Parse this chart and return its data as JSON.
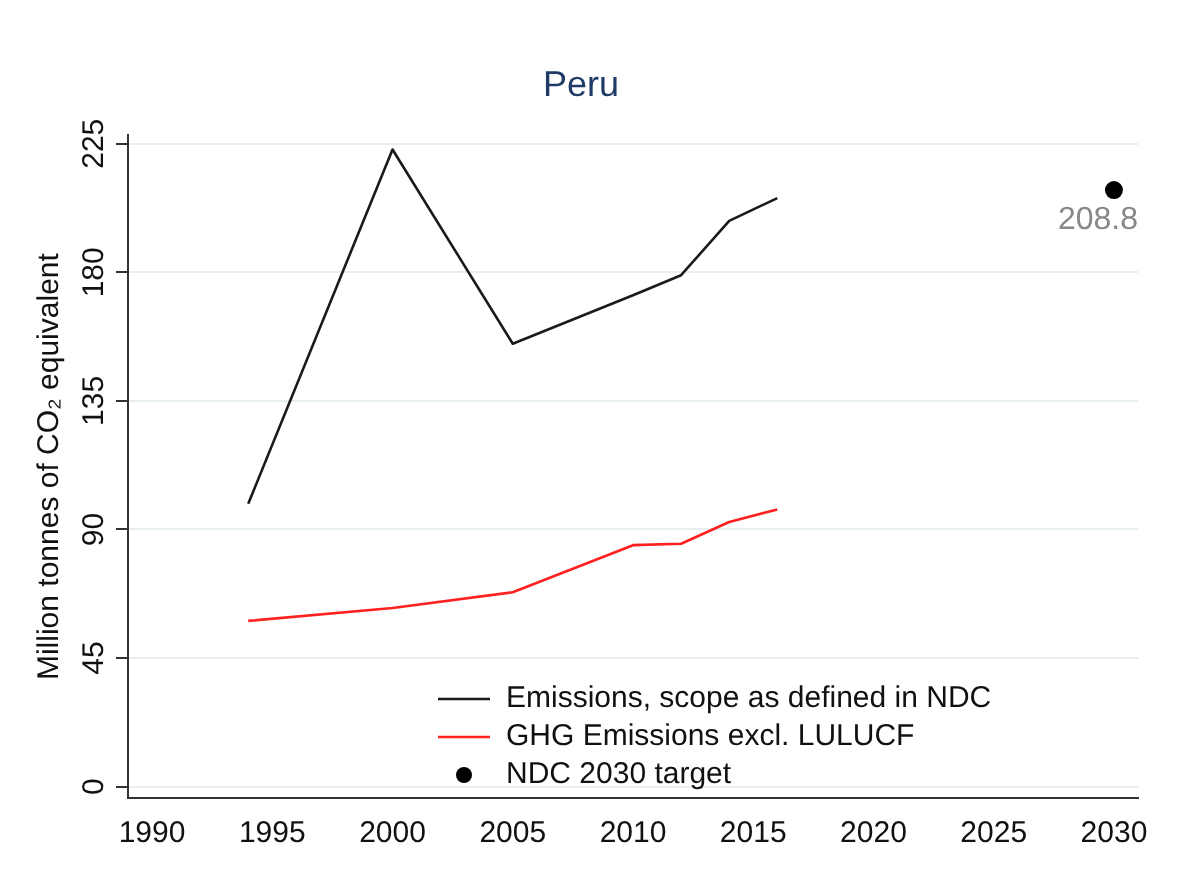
{
  "chart_data": {
    "type": "line",
    "title": "Peru",
    "ylabel": "Million tonnes of CO₂ equivalent",
    "xlim": [
      1989,
      2031
    ],
    "xticks": [
      1990,
      1995,
      2000,
      2005,
      2010,
      2015,
      2020,
      2025,
      2030
    ],
    "ylim": [
      -4,
      228
    ],
    "yticks": [
      0,
      45,
      90,
      135,
      180,
      225
    ],
    "grid": "y",
    "legend": "bottom right",
    "series": [
      {
        "name": "Emissions, scope as defined in NDC",
        "color": "#1a1a1a",
        "x": [
          1994,
          2000,
          2005,
          2010,
          2012,
          2014,
          2016
        ],
        "values": [
          99,
          223,
          155,
          172,
          179,
          198,
          206
        ]
      },
      {
        "name": "GHG Emissions excl. LULUCF",
        "color": "#ff2020",
        "x": [
          1994,
          2000,
          2005,
          2010,
          2012,
          2014,
          2016
        ],
        "values": [
          58,
          62.5,
          68,
          84.5,
          85,
          92.6,
          97
        ]
      },
      {
        "name": "NDC 2030 target",
        "type": "scatter",
        "marker": "circle",
        "color": "#000000",
        "x": [
          2030
        ],
        "values": [
          208.8
        ],
        "value_labels": [
          "208.8"
        ]
      }
    ]
  }
}
